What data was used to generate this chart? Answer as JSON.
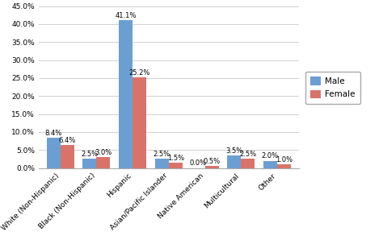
{
  "categories": [
    "White (Non-Hispanic)",
    "Black (Non-Hispanic)",
    "Hispanic",
    "Asian/Pacific Islander",
    "Native American",
    "Multicultural",
    "Other"
  ],
  "male_values": [
    8.4,
    2.5,
    41.1,
    2.5,
    0.0,
    3.5,
    2.0
  ],
  "female_values": [
    6.4,
    3.0,
    25.2,
    1.5,
    0.5,
    2.5,
    1.0
  ],
  "male_color": "#6B9FD4",
  "female_color": "#D9736A",
  "male_label": "Male",
  "female_label": "Female",
  "ylim": [
    0,
    45
  ],
  "yticks": [
    0,
    5,
    10,
    15,
    20,
    25,
    30,
    35,
    40,
    45
  ],
  "bar_width": 0.38,
  "label_fontsize": 6.0,
  "tick_fontsize": 6.5,
  "legend_fontsize": 7.5,
  "background_color": "#ffffff",
  "grid_color": "#d0d0d0"
}
